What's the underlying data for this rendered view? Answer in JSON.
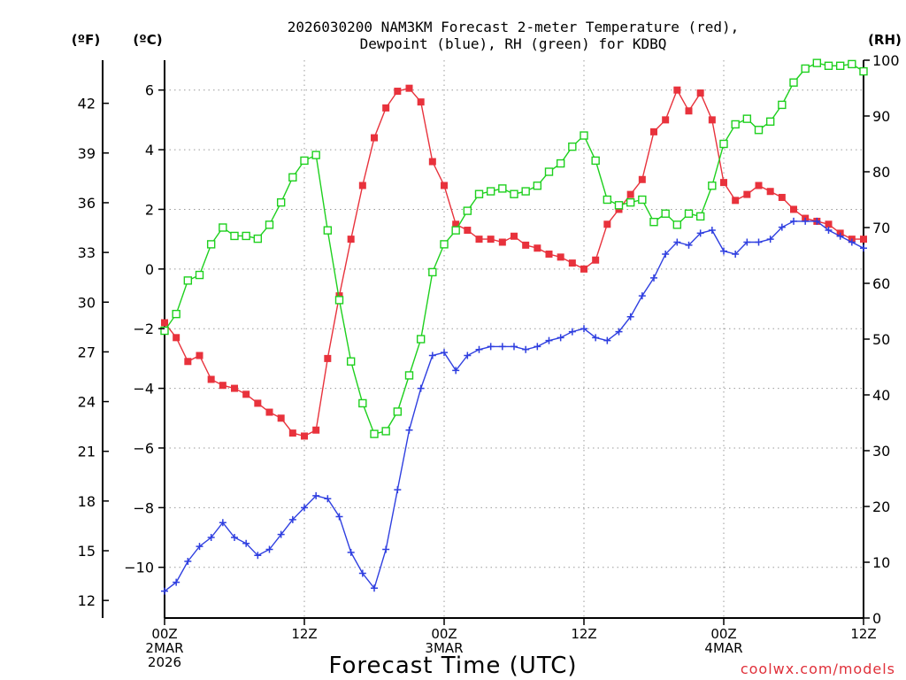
{
  "chart_data": {
    "type": "line",
    "title": [
      "2026030200 NAM3KM Forecast 2-meter Temperature (red),",
      "Dewpoint (blue), RH (green) for KDBQ"
    ],
    "xlabel": "Forecast Time (UTC)",
    "credit": "coolwx.com/models",
    "units": {
      "left_f": "(ºF)",
      "left_c": "(ºC)",
      "right_rh": "(RH)"
    },
    "x_hours": {
      "start": 0,
      "end": 60,
      "step": 1
    },
    "x_ticks": [
      {
        "hour": 0,
        "lines": [
          "00Z",
          "2MAR",
          "2026"
        ]
      },
      {
        "hour": 12,
        "lines": [
          "12Z"
        ]
      },
      {
        "hour": 24,
        "lines": [
          "00Z",
          "3MAR"
        ]
      },
      {
        "hour": 36,
        "lines": [
          "12Z"
        ]
      },
      {
        "hour": 48,
        "lines": [
          "00Z",
          "4MAR"
        ]
      },
      {
        "hour": 60,
        "lines": [
          "12Z"
        ]
      }
    ],
    "y_c_range": [
      -11.7,
      7.0
    ],
    "y_c_ticks": [
      "6",
      "4",
      "2",
      "0",
      "−2",
      "−4",
      "−6",
      "−8",
      "−10"
    ],
    "y_c_tick_values": [
      6,
      4,
      2,
      0,
      -2,
      -4,
      -6,
      -8,
      -10
    ],
    "y_f_ticks": [
      "42",
      "39",
      "36",
      "33",
      "30",
      "27",
      "24",
      "21",
      "18",
      "15",
      "12"
    ],
    "y_f_tick_values": [
      42,
      39,
      36,
      33,
      30,
      27,
      24,
      21,
      18,
      15,
      12
    ],
    "y_rh_range": [
      0,
      100
    ],
    "y_rh_ticks": [
      "100",
      "90",
      "80",
      "70",
      "60",
      "50",
      "40",
      "30",
      "20",
      "10",
      "0"
    ],
    "y_rh_tick_values": [
      100,
      90,
      80,
      70,
      60,
      50,
      40,
      30,
      20,
      10,
      0
    ],
    "series": [
      {
        "name": "Temperature (°C)",
        "color": "#e8323c",
        "marker": "filled-square",
        "axis": "c",
        "values": [
          -1.8,
          -2.3,
          -3.1,
          -2.9,
          -3.7,
          -3.9,
          -4.0,
          -4.2,
          -4.5,
          -4.8,
          -5.0,
          -5.5,
          -5.6,
          -5.4,
          -3.0,
          -0.9,
          1.0,
          2.8,
          4.4,
          5.4,
          5.96,
          6.06,
          5.6,
          3.6,
          2.8,
          1.5,
          1.3,
          1.0,
          1.0,
          0.9,
          1.1,
          0.8,
          0.7,
          0.5,
          0.4,
          0.2,
          0.0,
          0.3,
          1.5,
          2.0,
          2.5,
          3.0,
          4.6,
          5.0,
          6.0,
          5.3,
          5.9,
          5.0,
          2.9,
          2.3,
          2.5,
          2.8,
          2.6,
          2.4,
          2.0,
          1.7,
          1.6,
          1.5,
          1.2,
          1.0,
          1.0
        ]
      },
      {
        "name": "Dewpoint (°C)",
        "color": "#2f3fe0",
        "marker": "plus",
        "axis": "c",
        "values": [
          -10.8,
          -10.5,
          -9.8,
          -9.3,
          -9.0,
          -8.5,
          -9.0,
          -9.2,
          -9.6,
          -9.4,
          -8.9,
          -8.4,
          -8.0,
          -7.6,
          -7.7,
          -8.3,
          -9.5,
          -10.2,
          -10.7,
          -9.4,
          -7.4,
          -5.4,
          -4.0,
          -2.9,
          -2.8,
          -3.4,
          -2.9,
          -2.7,
          -2.6,
          -2.6,
          -2.6,
          -2.7,
          -2.6,
          -2.4,
          -2.3,
          -2.1,
          -2.0,
          -2.3,
          -2.4,
          -2.1,
          -1.6,
          -0.9,
          -0.3,
          0.5,
          0.9,
          0.8,
          1.2,
          1.3,
          0.6,
          0.5,
          0.9,
          0.9,
          1.0,
          1.4,
          1.6,
          1.6,
          1.6,
          1.3,
          1.1,
          0.9,
          0.7
        ]
      },
      {
        "name": "RH (%)",
        "color": "#1ed01e",
        "marker": "open-square",
        "axis": "rh",
        "values": [
          51.5,
          54.5,
          60.5,
          61.5,
          67,
          70,
          68.5,
          68.5,
          68,
          70.5,
          74.5,
          79,
          82,
          83,
          69.5,
          57,
          46,
          38.5,
          33,
          33.5,
          37,
          43.5,
          50,
          62,
          67,
          69.5,
          73,
          76,
          76.5,
          77,
          76,
          76.5,
          77.5,
          80,
          81.5,
          84.5,
          86.5,
          82,
          75,
          74,
          74.5,
          75,
          71,
          72.5,
          70.5,
          72.5,
          72,
          77.5,
          85,
          88.5,
          89.5,
          87.5,
          89,
          92,
          96,
          98.5,
          99.5,
          99,
          99,
          99.3,
          98
        ]
      }
    ]
  }
}
